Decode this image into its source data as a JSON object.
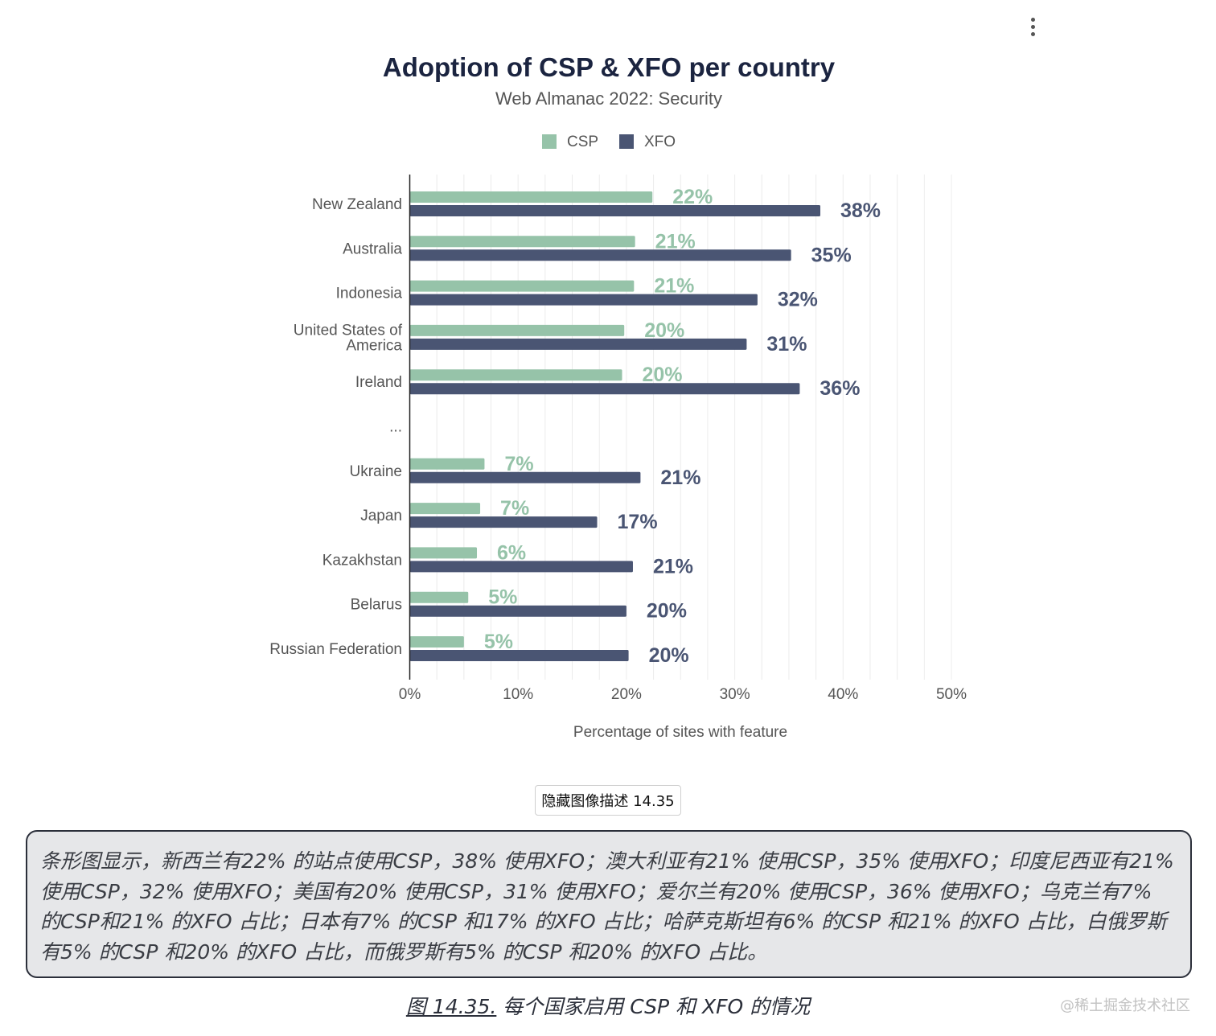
{
  "chart_data": {
    "type": "bar",
    "orientation": "horizontal",
    "title": "Adoption of CSP & XFO per country",
    "subtitle": "Web Almanac 2022: Security",
    "xlabel": "Percentage of sites with feature",
    "ylabel": "",
    "xlim": [
      0,
      50
    ],
    "xticks": [
      "0%",
      "10%",
      "20%",
      "30%",
      "40%",
      "50%"
    ],
    "legend": [
      "CSP",
      "XFO"
    ],
    "legend_position": "top",
    "categories": [
      [
        "New Zealand"
      ],
      [
        "Australia"
      ],
      [
        "Indonesia"
      ],
      [
        "United States of",
        "America"
      ],
      [
        "Ireland"
      ],
      [
        "..."
      ],
      [
        "Ukraine"
      ],
      [
        "Japan"
      ],
      [
        "Kazakhstan"
      ],
      [
        "Belarus"
      ],
      [
        "Russian Federation"
      ]
    ],
    "series": [
      {
        "name": "CSP",
        "color": "#96c3a9",
        "values": [
          22.4,
          20.8,
          20.7,
          19.8,
          19.6,
          null,
          6.9,
          6.5,
          6.2,
          5.4,
          5.0
        ],
        "labels": [
          "22%",
          "21%",
          "21%",
          "20%",
          "20%",
          "",
          "7%",
          "7%",
          "6%",
          "5%",
          "5%"
        ]
      },
      {
        "name": "XFO",
        "color": "#4a5573",
        "values": [
          37.9,
          35.2,
          32.1,
          31.1,
          36.0,
          null,
          21.3,
          17.3,
          20.6,
          20.0,
          20.2
        ],
        "labels": [
          "38%",
          "35%",
          "32%",
          "31%",
          "36%",
          "",
          "21%",
          "17%",
          "21%",
          "20%",
          "20%"
        ]
      }
    ]
  },
  "toggle_button": {
    "label": "隐藏图像描述 14.35"
  },
  "description": "条形图显示，新西兰有22% 的站点使用CSP，38% 使用XFO；澳大利亚有21% 使用CSP，35% 使用XFO；印度尼西亚有21% 使用CSP，32% 使用XFO；美国有20% 使用CSP，31% 使用XFO；爱尔兰有20% 使用CSP，36% 使用XFO；乌克兰有7% 的CSP和21% 的XFO 占比；日本有7% 的CSP 和17% 的XFO 占比；哈萨克斯坦有6% 的CSP 和21% 的XFO 占比，白俄罗斯有5% 的CSP 和20% 的XFO 占比，而俄罗斯有5% 的CSP 和20% 的XFO 占比。",
  "caption": {
    "figure_link": "图 14.35.",
    "text": " 每个国家启用 CSP 和 XFO 的情况"
  },
  "watermark": "@稀土掘金技术社区"
}
